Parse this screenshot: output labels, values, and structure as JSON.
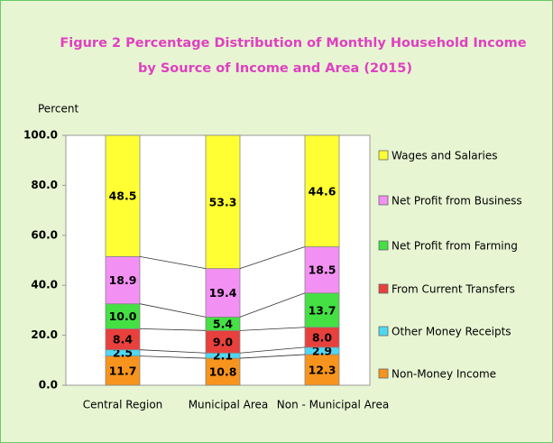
{
  "chart_data": {
    "type": "stacked-bar",
    "title": [
      "Figure 2 Percentage Distribution of Monthly Household Income",
      "by Source of Income and Area (2015)"
    ],
    "y_label": "Percent",
    "categories": [
      "Central Region",
      "Municipal Area",
      "Non - Municipal Area"
    ],
    "series": [
      {
        "name": "Non-Money Income",
        "color": "#f7941d",
        "values": [
          11.7,
          10.8,
          12.3
        ],
        "value_labels": [
          "11.7",
          "10.8",
          "12.3"
        ]
      },
      {
        "name": "Other Money Receipts",
        "color": "#4fd8f2",
        "values": [
          2.5,
          2.1,
          2.9
        ],
        "value_labels": [
          "2.5",
          "2.1",
          "2.9"
        ]
      },
      {
        "name": "From Current Transfers",
        "color": "#e8403c",
        "values": [
          8.4,
          9.0,
          8.0
        ],
        "value_labels": [
          "8.4",
          "9.0",
          "8.0"
        ]
      },
      {
        "name": "Net Profit from Farming",
        "color": "#44e044",
        "values": [
          10.0,
          5.4,
          13.7
        ],
        "value_labels": [
          "10.0",
          "5.4",
          "13.7"
        ]
      },
      {
        "name": "Net Profit from Business",
        "color": "#f390f3",
        "values": [
          18.9,
          19.4,
          18.5
        ],
        "value_labels": [
          "18.9",
          "19.4",
          "18.5"
        ]
      },
      {
        "name": "Wages and Salaries",
        "color": "#ffff33",
        "values": [
          48.5,
          53.3,
          44.6
        ],
        "value_labels": [
          "48.5",
          "53.3",
          "44.6"
        ]
      }
    ],
    "ylim": [
      0,
      100
    ],
    "yticks": [
      {
        "value": 0,
        "label": "0.0"
      },
      {
        "value": 20,
        "label": "20.0"
      },
      {
        "value": 40,
        "label": "40.0"
      },
      {
        "value": 60,
        "label": "60.0"
      },
      {
        "value": 80,
        "label": "80.0"
      },
      {
        "value": 100,
        "label": "100.0"
      }
    ],
    "legend": "right",
    "series_lines": true
  }
}
